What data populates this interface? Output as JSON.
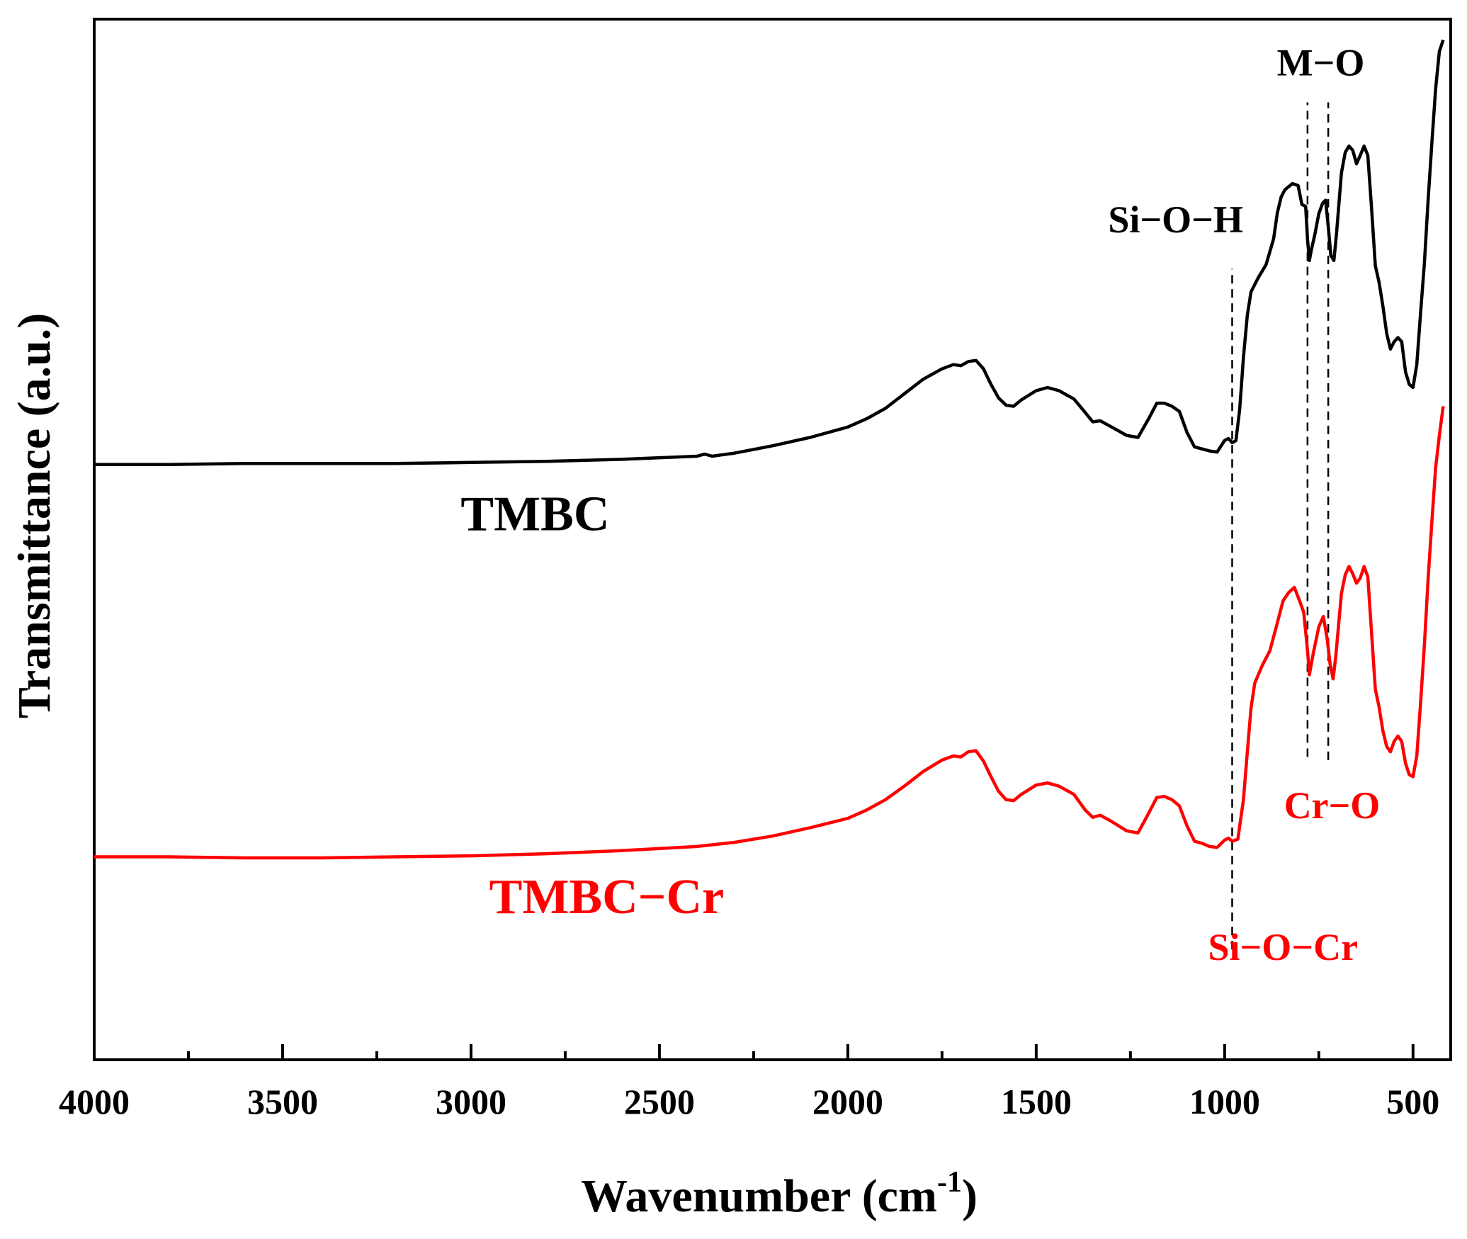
{
  "chart_data": {
    "type": "line",
    "title": "",
    "xlabel": "Wavenumber (cm",
    "xlabel_sup": "-1",
    "xlabel_close": ")",
    "ylabel": "Transmittance (a.u.)",
    "xlim": [
      4000,
      400
    ],
    "ylim": [
      0,
      100
    ],
    "x_ticks": [
      4000,
      3500,
      3000,
      2500,
      2000,
      1500,
      1000,
      500
    ],
    "x_tick_labels": [
      "4000",
      "3500",
      "3000",
      "2500",
      "2000",
      "1500",
      "1000",
      "500"
    ],
    "x_minor_ticks": [
      3750,
      3250,
      2750,
      2250,
      1750,
      1250,
      750
    ],
    "grid": false,
    "series": [
      {
        "name": "TMBC",
        "label": "TMBC",
        "color": "#000000",
        "points": [
          [
            4000,
            57.2
          ],
          [
            3800,
            57.2
          ],
          [
            3600,
            57.3
          ],
          [
            3400,
            57.3
          ],
          [
            3200,
            57.3
          ],
          [
            3000,
            57.4
          ],
          [
            2800,
            57.5
          ],
          [
            2600,
            57.7
          ],
          [
            2400,
            58.0
          ],
          [
            2380,
            58.2
          ],
          [
            2360,
            58.0
          ],
          [
            2300,
            58.3
          ],
          [
            2200,
            59.0
          ],
          [
            2100,
            59.8
          ],
          [
            2000,
            60.8
          ],
          [
            1950,
            61.6
          ],
          [
            1900,
            62.6
          ],
          [
            1850,
            64.0
          ],
          [
            1800,
            65.4
          ],
          [
            1750,
            66.4
          ],
          [
            1720,
            66.8
          ],
          [
            1700,
            66.7
          ],
          [
            1680,
            67.1
          ],
          [
            1660,
            67.2
          ],
          [
            1640,
            66.4
          ],
          [
            1620,
            64.9
          ],
          [
            1600,
            63.6
          ],
          [
            1580,
            62.9
          ],
          [
            1560,
            62.8
          ],
          [
            1540,
            63.4
          ],
          [
            1500,
            64.3
          ],
          [
            1470,
            64.6
          ],
          [
            1440,
            64.3
          ],
          [
            1400,
            63.5
          ],
          [
            1370,
            62.2
          ],
          [
            1350,
            61.3
          ],
          [
            1330,
            61.4
          ],
          [
            1300,
            60.8
          ],
          [
            1260,
            60.0
          ],
          [
            1230,
            59.8
          ],
          [
            1200,
            61.7
          ],
          [
            1180,
            63.1
          ],
          [
            1160,
            63.1
          ],
          [
            1140,
            62.8
          ],
          [
            1120,
            62.3
          ],
          [
            1100,
            60.3
          ],
          [
            1080,
            58.9
          ],
          [
            1060,
            58.7
          ],
          [
            1040,
            58.5
          ],
          [
            1020,
            58.4
          ],
          [
            1000,
            59.5
          ],
          [
            990,
            59.7
          ],
          [
            980,
            59.3
          ],
          [
            970,
            59.5
          ],
          [
            960,
            62.5
          ],
          [
            950,
            67.5
          ],
          [
            940,
            71.5
          ],
          [
            930,
            73.8
          ],
          [
            910,
            75.2
          ],
          [
            890,
            76.4
          ],
          [
            870,
            78.9
          ],
          [
            860,
            81.4
          ],
          [
            850,
            82.9
          ],
          [
            840,
            83.6
          ],
          [
            820,
            84.2
          ],
          [
            805,
            84.0
          ],
          [
            795,
            82.2
          ],
          [
            785,
            82.0
          ],
          [
            780,
            78.8
          ],
          [
            775,
            76.8
          ],
          [
            770,
            77.8
          ],
          [
            760,
            79.4
          ],
          [
            750,
            81.3
          ],
          [
            740,
            82.3
          ],
          [
            732,
            82.6
          ],
          [
            725,
            80.1
          ],
          [
            718,
            77.3
          ],
          [
            710,
            76.8
          ],
          [
            703,
            79.4
          ],
          [
            690,
            85.2
          ],
          [
            680,
            87.2
          ],
          [
            670,
            87.8
          ],
          [
            660,
            87.4
          ],
          [
            650,
            86.1
          ],
          [
            640,
            86.9
          ],
          [
            630,
            87.8
          ],
          [
            620,
            86.9
          ],
          [
            610,
            81.8
          ],
          [
            600,
            76.3
          ],
          [
            590,
            74.7
          ],
          [
            580,
            72.4
          ],
          [
            570,
            69.8
          ],
          [
            560,
            68.3
          ],
          [
            550,
            69.0
          ],
          [
            540,
            69.4
          ],
          [
            530,
            69.0
          ],
          [
            520,
            66.1
          ],
          [
            510,
            64.9
          ],
          [
            500,
            64.6
          ],
          [
            490,
            66.8
          ],
          [
            480,
            71.7
          ],
          [
            470,
            76.5
          ],
          [
            460,
            82.6
          ],
          [
            450,
            88.1
          ],
          [
            440,
            93.3
          ],
          [
            430,
            96.9
          ],
          [
            420,
            98.0
          ]
        ]
      },
      {
        "name": "TMBC-Cr",
        "label": "TMBC−Cr",
        "color": "#ff0000",
        "points": [
          [
            4000,
            19.5
          ],
          [
            3800,
            19.5
          ],
          [
            3600,
            19.4
          ],
          [
            3400,
            19.4
          ],
          [
            3200,
            19.5
          ],
          [
            3000,
            19.6
          ],
          [
            2800,
            19.8
          ],
          [
            2600,
            20.1
          ],
          [
            2400,
            20.5
          ],
          [
            2300,
            20.9
          ],
          [
            2200,
            21.5
          ],
          [
            2100,
            22.3
          ],
          [
            2000,
            23.2
          ],
          [
            1950,
            24.0
          ],
          [
            1900,
            25.0
          ],
          [
            1850,
            26.3
          ],
          [
            1800,
            27.7
          ],
          [
            1750,
            28.8
          ],
          [
            1720,
            29.2
          ],
          [
            1700,
            29.1
          ],
          [
            1680,
            29.6
          ],
          [
            1660,
            29.7
          ],
          [
            1640,
            28.7
          ],
          [
            1620,
            27.2
          ],
          [
            1600,
            25.8
          ],
          [
            1580,
            25.0
          ],
          [
            1560,
            24.9
          ],
          [
            1540,
            25.5
          ],
          [
            1500,
            26.4
          ],
          [
            1470,
            26.6
          ],
          [
            1440,
            26.3
          ],
          [
            1400,
            25.5
          ],
          [
            1370,
            24.0
          ],
          [
            1350,
            23.3
          ],
          [
            1330,
            23.5
          ],
          [
            1300,
            22.9
          ],
          [
            1260,
            22.0
          ],
          [
            1230,
            21.8
          ],
          [
            1200,
            23.8
          ],
          [
            1180,
            25.2
          ],
          [
            1160,
            25.3
          ],
          [
            1140,
            25.0
          ],
          [
            1120,
            24.4
          ],
          [
            1100,
            22.5
          ],
          [
            1080,
            21.0
          ],
          [
            1060,
            20.8
          ],
          [
            1040,
            20.5
          ],
          [
            1020,
            20.4
          ],
          [
            1000,
            21.1
          ],
          [
            990,
            21.3
          ],
          [
            980,
            21.0
          ],
          [
            965,
            21.2
          ],
          [
            950,
            25.0
          ],
          [
            940,
            29.5
          ],
          [
            930,
            33.8
          ],
          [
            920,
            36.2
          ],
          [
            900,
            37.9
          ],
          [
            880,
            39.3
          ],
          [
            860,
            42.0
          ],
          [
            845,
            44.1
          ],
          [
            830,
            44.9
          ],
          [
            815,
            45.4
          ],
          [
            800,
            44.0
          ],
          [
            790,
            43.0
          ],
          [
            780,
            39.3
          ],
          [
            775,
            37.0
          ],
          [
            765,
            39.0
          ],
          [
            750,
            41.6
          ],
          [
            738,
            42.6
          ],
          [
            728,
            40.5
          ],
          [
            720,
            38.0
          ],
          [
            712,
            36.6
          ],
          [
            705,
            38.8
          ],
          [
            690,
            44.8
          ],
          [
            680,
            46.6
          ],
          [
            670,
            47.4
          ],
          [
            660,
            46.7
          ],
          [
            650,
            45.8
          ],
          [
            640,
            46.3
          ],
          [
            630,
            47.4
          ],
          [
            620,
            46.4
          ],
          [
            610,
            41.0
          ],
          [
            600,
            35.6
          ],
          [
            590,
            33.9
          ],
          [
            580,
            31.6
          ],
          [
            570,
            30.1
          ],
          [
            560,
            29.6
          ],
          [
            550,
            30.6
          ],
          [
            540,
            31.1
          ],
          [
            530,
            30.6
          ],
          [
            520,
            28.5
          ],
          [
            510,
            27.4
          ],
          [
            500,
            27.2
          ],
          [
            490,
            29.2
          ],
          [
            480,
            34.2
          ],
          [
            470,
            39.8
          ],
          [
            460,
            46.2
          ],
          [
            450,
            51.7
          ],
          [
            440,
            56.9
          ],
          [
            430,
            60.0
          ],
          [
            420,
            62.8
          ]
        ]
      }
    ],
    "annotations": [
      {
        "text": "M−O",
        "color": "#000000",
        "x": 745,
        "y": 94.6
      },
      {
        "text": "Si−O−H",
        "color": "#000000",
        "x": 1130,
        "y": 79.5
      },
      {
        "text": "Cr−O",
        "color": "#ff0000",
        "x": 715,
        "y": 23.2
      },
      {
        "text": "Si−O−Cr",
        "color": "#ff0000",
        "x": 845,
        "y": 9.6
      }
    ],
    "reference_lines": [
      {
        "x": 980,
        "y_from": 10.6,
        "y_to": 76.0
      },
      {
        "x": 780,
        "y_from": 29.1,
        "y_to": 92.0
      },
      {
        "x": 725,
        "y_from": 28.8,
        "y_to": 92.0
      }
    ],
    "series_labels": [
      {
        "text": "TMBC",
        "color": "#000000",
        "x": 2830,
        "y": 50.9
      },
      {
        "text": "TMBC−Cr",
        "color": "#ff0000",
        "x": 2640,
        "y": 14.1
      }
    ]
  }
}
